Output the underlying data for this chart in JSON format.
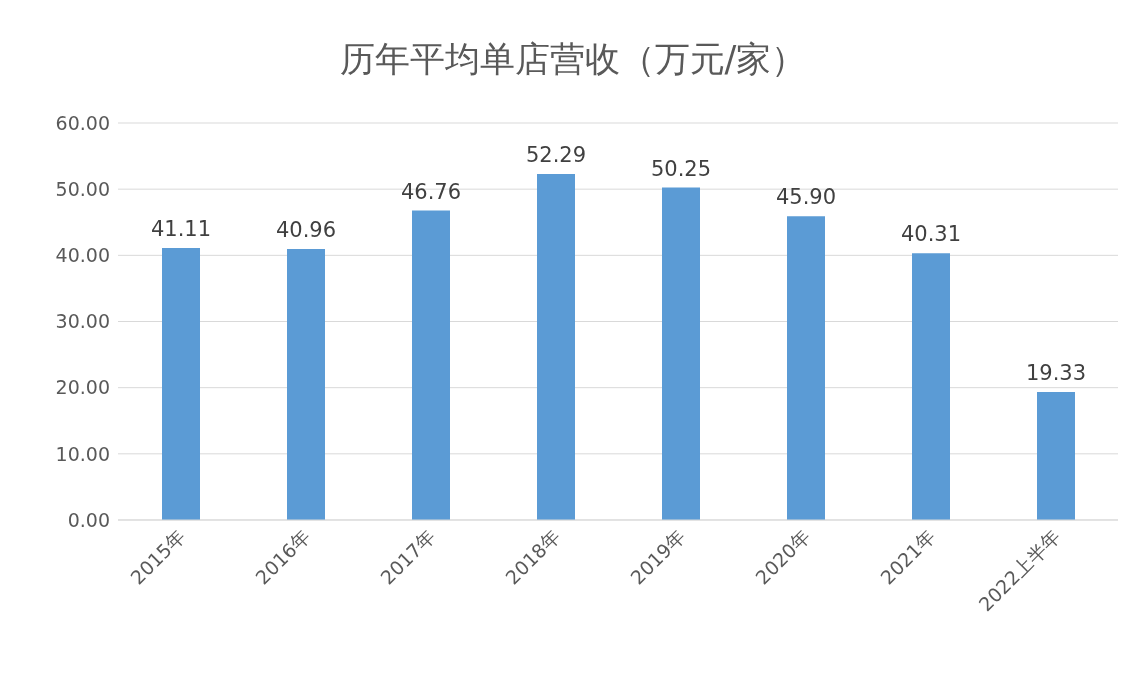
{
  "chart_data": {
    "type": "bar",
    "title": "历年平均单店营收（万元/家）",
    "categories": [
      "2015年",
      "2016年",
      "2017年",
      "2018年",
      "2019年",
      "2020年",
      "2021年",
      "2022上半年"
    ],
    "values": [
      41.11,
      40.96,
      46.76,
      52.29,
      50.25,
      45.9,
      40.31,
      19.33
    ],
    "value_labels": [
      "41.11",
      "40.96",
      "46.76",
      "52.29",
      "50.25",
      "45.90",
      "40.31",
      "19.33"
    ],
    "color": "#5b9bd5",
    "ylim": [
      0,
      60
    ],
    "yticks": [
      {
        "value": 0,
        "label": "0.00"
      },
      {
        "value": 10,
        "label": "10.00"
      },
      {
        "value": 20,
        "label": "20.00"
      },
      {
        "value": 30,
        "label": "30.00"
      },
      {
        "value": 40,
        "label": "40.00"
      },
      {
        "value": 50,
        "label": "50.00"
      },
      {
        "value": 60,
        "label": "60.00"
      }
    ],
    "grid": "y"
  }
}
